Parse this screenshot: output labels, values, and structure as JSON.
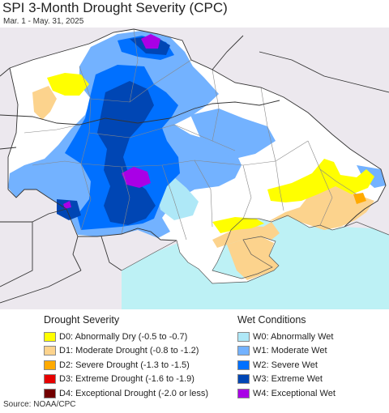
{
  "header": {
    "title": "SPI 3-Month Drought Severity (CPC)",
    "subtitle": "Mar. 1 - May. 31, 2025"
  },
  "legend": {
    "drought": {
      "title": "Drought Severity",
      "items": [
        {
          "label": "D0: Abnormally Dry (-0.5 to -0.7)",
          "color": "#ffff00"
        },
        {
          "label": "D1: Moderate Drought (-0.8 to -1.2)",
          "color": "#fcd38d"
        },
        {
          "label": "D2: Severe Drought (-1.3 to -1.5)",
          "color": "#ffaa00"
        },
        {
          "label": "D3: Extreme Drought (-1.6 to -1.9)",
          "color": "#e60000"
        },
        {
          "label": "D4: Exceptional Drought (-2.0 or less)",
          "color": "#730000"
        }
      ]
    },
    "wet": {
      "title": "Wet Conditions",
      "items": [
        {
          "label": "W0: Abnormally Wet",
          "color": "#aee8f7"
        },
        {
          "label": "W1: Moderate Wet",
          "color": "#73b2ff"
        },
        {
          "label": "W2: Severe Wet",
          "color": "#0070ff"
        },
        {
          "label": "W3: Extreme Wet",
          "color": "#0046b4"
        },
        {
          "label": "W4: Exceptional Wet",
          "color": "#a900e6"
        }
      ]
    }
  },
  "footer": {
    "source": "Source: NOAA/CPC"
  },
  "map": {
    "colors": {
      "outside": "#ece8ee",
      "land": "#ffffff",
      "sea": "#bdf1f5",
      "border": "#333333",
      "oblast": "#888888"
    }
  }
}
